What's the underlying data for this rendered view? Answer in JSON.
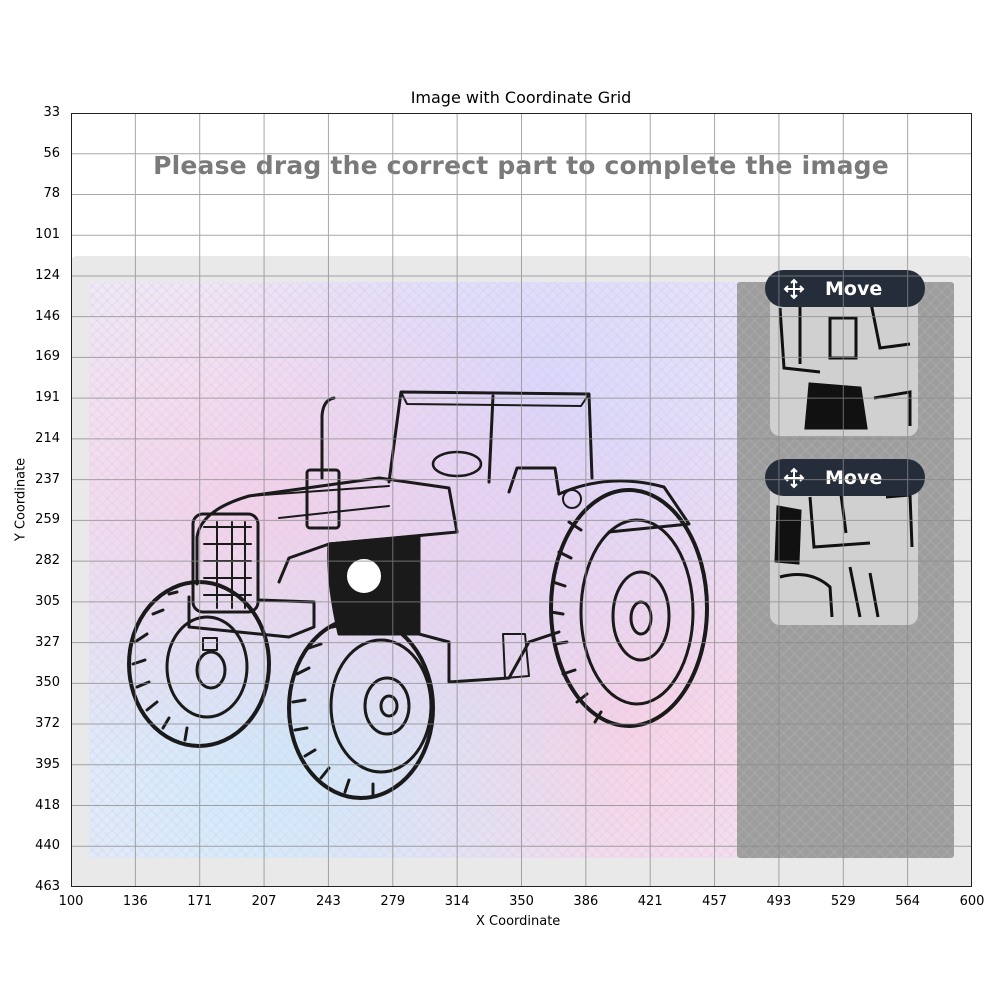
{
  "figure": {
    "title": "Image with Coordinate Grid",
    "xlabel": "X Coordinate",
    "ylabel": "Y Coordinate",
    "x_ticks": [
      "100",
      "136",
      "171",
      "207",
      "243",
      "279",
      "314",
      "350",
      "386",
      "421",
      "457",
      "493",
      "529",
      "564",
      "600"
    ],
    "y_ticks": [
      "33",
      "56",
      "78",
      "101",
      "124",
      "146",
      "169",
      "191",
      "214",
      "237",
      "259",
      "282",
      "305",
      "327",
      "350",
      "372",
      "395",
      "418",
      "440",
      "463"
    ]
  },
  "captcha": {
    "prompt": "Please drag the correct part to complete the image",
    "pieces": [
      {
        "move_label": "Move",
        "icon": "move-arrows-icon"
      },
      {
        "move_label": "Move",
        "icon": "move-arrows-icon"
      }
    ]
  },
  "colors": {
    "move_button": "#262d3a",
    "panel": "#e9e9e9",
    "slot_area": "#9d9d9d",
    "prompt_text": "#7a7a7a"
  }
}
